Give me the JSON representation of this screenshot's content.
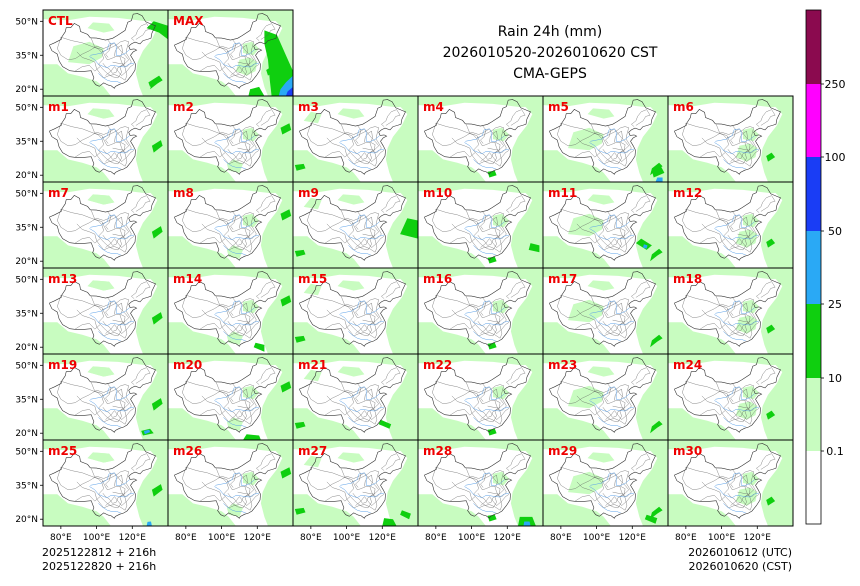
{
  "title": {
    "line1": "Rain 24h (mm)",
    "line2": "2026010520-2026010620 CST",
    "line3": "CMA-GEPS"
  },
  "footer": {
    "left_line1": "2025122812 + 216h",
    "left_line2": "2025122820 + 216h",
    "right_line1": "2026010612 (UTC)",
    "right_line2": "2026010620 (CST)"
  },
  "axes": {
    "lat_ticks": [
      "50°N",
      "35°N",
      "20°N"
    ],
    "lon_ticks": [
      "80°E",
      "100°E",
      "120°E"
    ]
  },
  "chart_data": {
    "type": "heatmap",
    "variable": "Rain 24h (mm)",
    "model": "CMA-GEPS",
    "valid_period": "2026010520-2026010620 CST",
    "lat_range": [
      17,
      55
    ],
    "lon_range": [
      70,
      140
    ],
    "lat_ticks": [
      50,
      35,
      20
    ],
    "lon_ticks": [
      80,
      100,
      120
    ],
    "panels": [
      "CTL",
      "MAX",
      "m1",
      "m2",
      "m3",
      "m4",
      "m5",
      "m6",
      "m7",
      "m8",
      "m9",
      "m10",
      "m11",
      "m12",
      "m13",
      "m14",
      "m15",
      "m16",
      "m17",
      "m18",
      "m19",
      "m20",
      "m21",
      "m22",
      "m23",
      "m24",
      "m25",
      "m26",
      "m27",
      "m28",
      "m29",
      "m30"
    ],
    "colorbar": {
      "levels": [
        "0.1",
        "10",
        "25",
        "50",
        "100",
        "250"
      ],
      "colors": [
        "#ffffff",
        "#c8fcc0",
        "#0fcf0f",
        "#2aa9f5",
        "#1a3df5",
        "#ff00ff",
        "#8b0a4f"
      ]
    }
  },
  "colors": {
    "label": "#ee0000",
    "light_rain": "#c8fcc0",
    "moderate_rain": "#0fcf0f",
    "heavy_rain": "#2aa9f5",
    "very_heavy_rain": "#1a3df5",
    "boundary": "#333333",
    "river": "#5aa0e8"
  }
}
